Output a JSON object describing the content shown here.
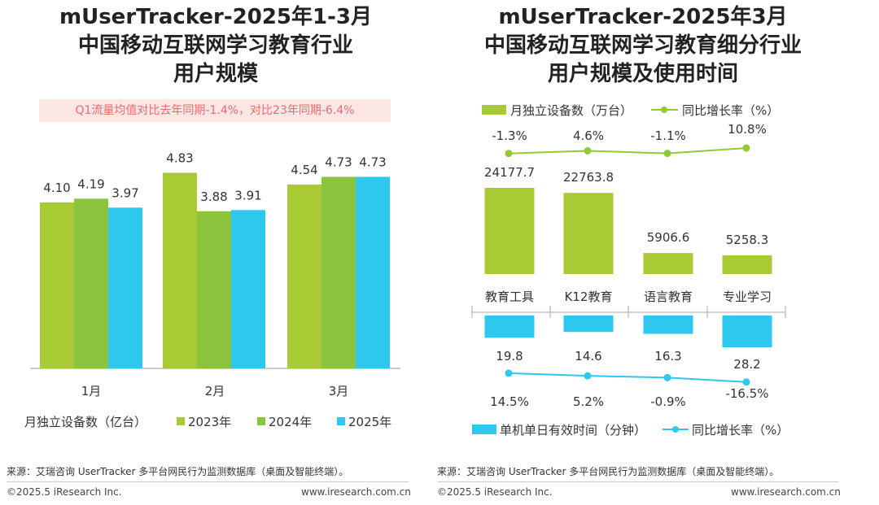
{
  "left_panel": {
    "title_lines": [
      "mUserTracker-2025年1-3月",
      "中国移动互联网学习教育行业",
      "用户规模"
    ],
    "banner": "Q1流量均值对比去年同期-1.4%，对比23年同期-6.4%",
    "source": "来源：艾瑞咨询 UserTracker 多平台网民行为监测数据库（桌面及智能终端）。",
    "copyright": "©2025.5 iResearch Inc.",
    "website": "www.iresearch.com.cn"
  },
  "right_panel": {
    "title_lines": [
      "mUserTracker-2025年3月",
      "中国移动互联网学习教育细分行业",
      "用户规模及使用时间"
    ],
    "source": "来源：艾瑞咨询 UserTracker 多平台网民行为监测数据库（桌面及智能终端）。",
    "copyright": "©2025.5 iResearch Inc.",
    "website": "www.iresearch.com.cn"
  },
  "colors": {
    "green_light": "#a8cb35",
    "green_mid": "#8cc43c",
    "cyan": "#2ec8ef",
    "line_green": "#93c936",
    "line_cyan": "#2ec8ef",
    "banner_text": "#f06b6b"
  },
  "chart_data": [
    {
      "type": "bar",
      "categories": [
        "1月",
        "2月",
        "3月"
      ],
      "series": [
        {
          "name": "2023年",
          "values": [
            4.1,
            4.83,
            4.54
          ],
          "labels": [
            "4.10",
            "4.83",
            "4.54"
          ]
        },
        {
          "name": "2024年",
          "values": [
            4.19,
            3.88,
            4.73
          ],
          "labels": [
            "4.19",
            "3.88",
            "4.73"
          ]
        },
        {
          "name": "2025年",
          "values": [
            3.97,
            3.91,
            4.73
          ],
          "labels": [
            "3.97",
            "3.91",
            "4.73"
          ]
        }
      ],
      "legend_label": "月独立设备数（亿台）",
      "ylim": [
        0,
        5.6
      ],
      "grid": false,
      "legend_position": "bottom"
    },
    {
      "type": "bar",
      "categories": [
        "教育工具",
        "K12教育",
        "语言教育",
        "专业学习"
      ],
      "top": {
        "bar_series": {
          "name": "月独立设备数（万台）",
          "values": [
            24177.7,
            22763.8,
            5906.6,
            5258.3
          ],
          "labels": [
            "24177.7",
            "22763.8",
            "5906.6",
            "5258.3"
          ]
        },
        "line_series": {
          "name": "同比增长率（%）",
          "values": [
            -1.3,
            4.6,
            -1.1,
            10.8
          ],
          "labels": [
            "-1.3%",
            "4.6%",
            "-1.1%",
            "10.8%"
          ]
        }
      },
      "bottom": {
        "bar_series": {
          "name": "单机单日有效时间（分钟）",
          "values": [
            19.8,
            14.6,
            16.3,
            28.2
          ],
          "labels": [
            "19.8",
            "14.6",
            "16.3",
            "28.2"
          ]
        },
        "line_series": {
          "name": "同比增长率（%）",
          "values": [
            14.5,
            5.2,
            -0.9,
            -16.5
          ],
          "labels": [
            "14.5%",
            "5.2%",
            "-0.9%",
            "-16.5%"
          ]
        }
      },
      "grid": false,
      "legend_position": "top and bottom"
    }
  ]
}
